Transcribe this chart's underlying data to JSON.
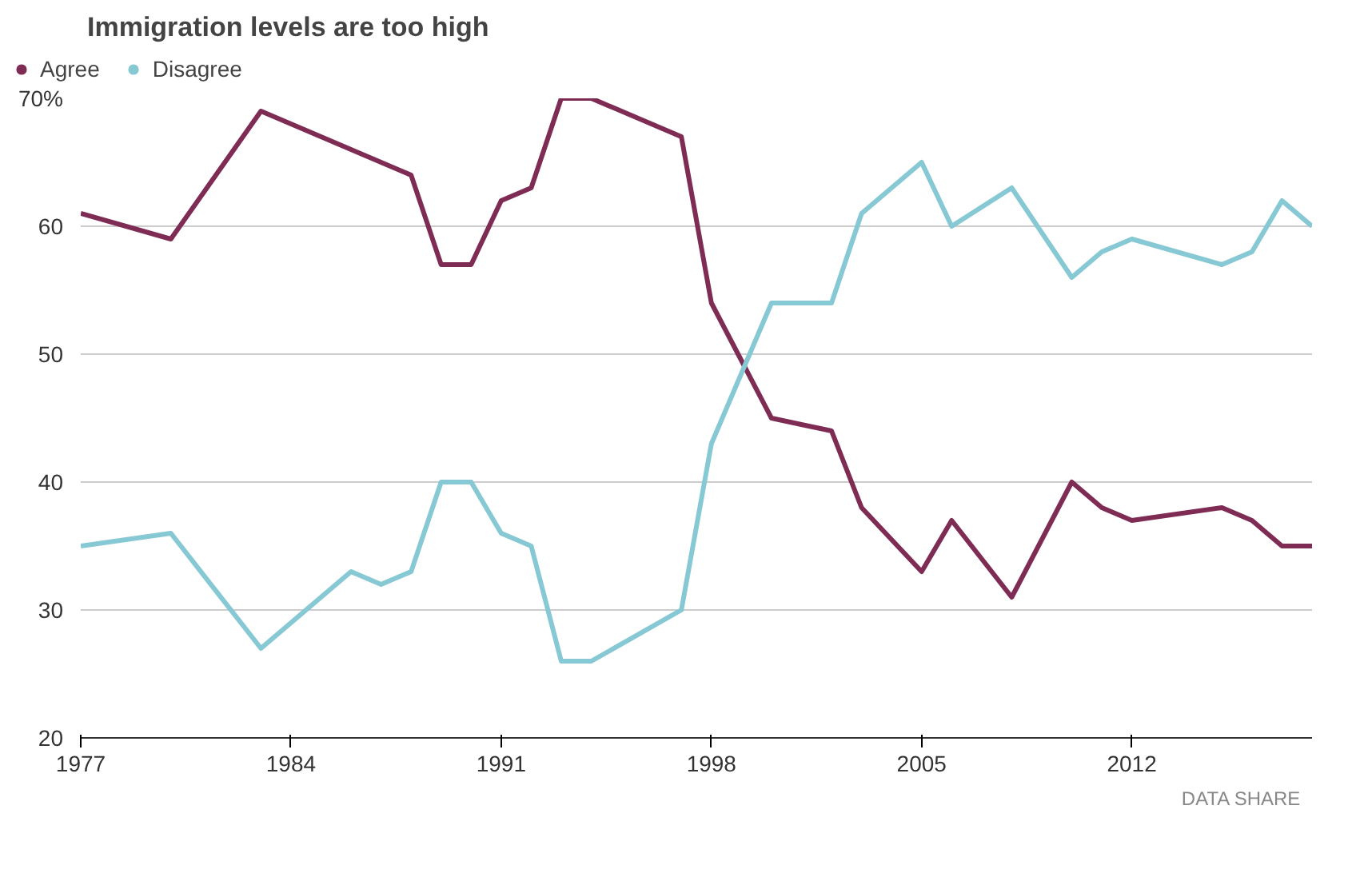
{
  "chart_data": {
    "type": "line",
    "title": "Immigration levels are too high",
    "series": [
      {
        "name": "Agree",
        "color": "#7f2c55",
        "x": [
          1977,
          1980,
          1983,
          1988,
          1989,
          1990,
          1991,
          1992,
          1993,
          1994,
          1997,
          1998,
          2000,
          2002,
          2003,
          2005,
          2006,
          2008,
          2010,
          2011,
          2012,
          2015,
          2016,
          2017,
          2018
        ],
        "values": [
          61,
          59,
          69,
          64,
          57,
          57,
          62,
          63,
          70,
          70,
          67,
          54,
          45,
          44,
          38,
          33,
          37,
          31,
          40,
          38,
          37,
          38,
          37,
          35,
          35
        ]
      },
      {
        "name": "Disagree",
        "color": "#86c8d3",
        "x": [
          1977,
          1980,
          1983,
          1986,
          1987,
          1988,
          1989,
          1990,
          1991,
          1992,
          1993,
          1994,
          1997,
          1998,
          2000,
          2002,
          2003,
          2005,
          2006,
          2008,
          2010,
          2011,
          2012,
          2015,
          2016,
          2017,
          2018
        ],
        "values": [
          35,
          36,
          27,
          33,
          32,
          33,
          40,
          40,
          36,
          35,
          26,
          26,
          30,
          43,
          54,
          54,
          61,
          65,
          60,
          63,
          56,
          58,
          59,
          57,
          58,
          62,
          60
        ]
      }
    ],
    "xlim": [
      1977,
      2018
    ],
    "xticks": [
      1977,
      1984,
      1991,
      1998,
      2005,
      2012
    ],
    "ylim": [
      20,
      70
    ],
    "yticks": [
      20,
      30,
      40,
      50,
      60,
      {
        "value": 70,
        "label": "70%"
      }
    ],
    "grid": "y",
    "legend": "top left",
    "marker": "none",
    "line_style": "solid",
    "annotations": [
      "DATA",
      "SHARE"
    ]
  }
}
